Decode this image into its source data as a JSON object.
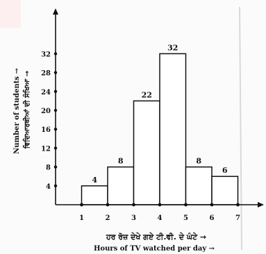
{
  "chart_data": {
    "type": "bar",
    "title": "",
    "xlabel": "Hours of TV watched per day →",
    "xlabel_punjabi": "ਹਰ ਰੋਜ਼ ਦੇਖੇ ਗਏ ਟੀ.ਵੀ. ਦੇ ਘੰਟੇ →",
    "ylabel": "Number of students →",
    "ylabel_punjabi": "ਵਿਦਿਆਰਥੀਆਂ ਦੀ ਸੰਖਿਆ →",
    "x_ticks": [
      "1",
      "2",
      "3",
      "4",
      "5",
      "6",
      "7"
    ],
    "y_ticks": [
      "4",
      "8",
      "12",
      "16",
      "20",
      "24",
      "28",
      "32"
    ],
    "ylim": [
      0,
      36
    ],
    "xlim": [
      0,
      7.6
    ],
    "grid": false,
    "bins": [
      {
        "from": 1,
        "to": 2,
        "value": 4,
        "label": "4"
      },
      {
        "from": 2,
        "to": 3,
        "value": 8,
        "label": "8"
      },
      {
        "from": 3,
        "to": 4,
        "value": 22,
        "label": "22"
      },
      {
        "from": 4,
        "to": 5,
        "value": 32,
        "label": "32"
      },
      {
        "from": 5,
        "to": 6,
        "value": 8,
        "label": "8"
      },
      {
        "from": 6,
        "to": 7,
        "value": 6,
        "label": "6"
      }
    ]
  }
}
